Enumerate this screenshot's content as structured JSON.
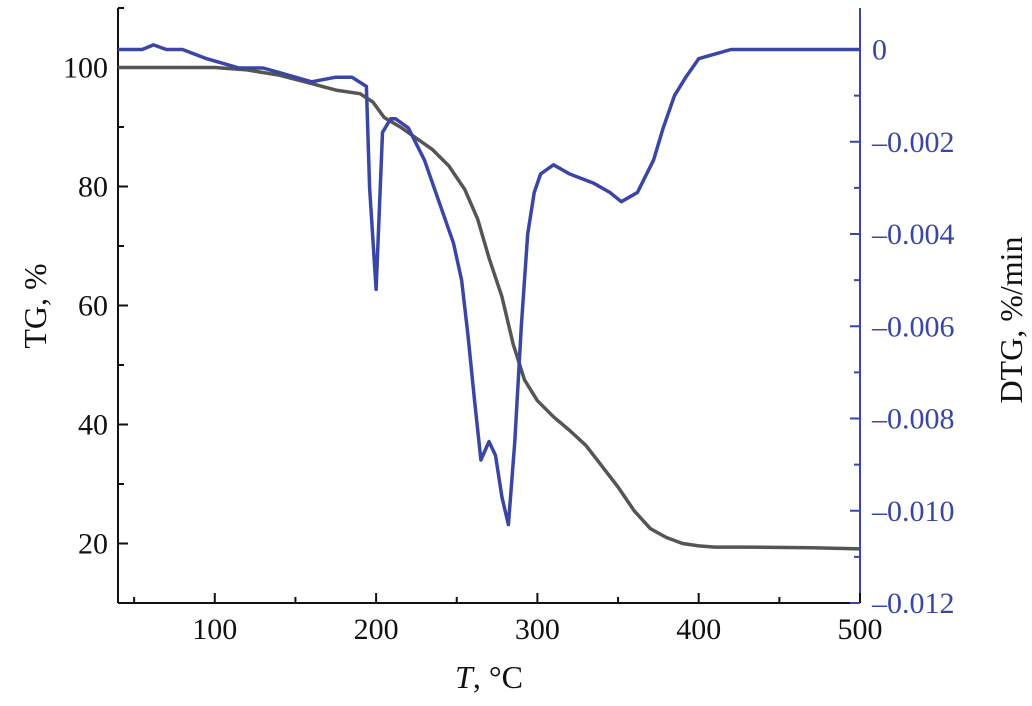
{
  "colors": {
    "tg": "#555555",
    "dtg": "#3a46a6",
    "axis": "#111111",
    "right_axis": "#3a46a6"
  },
  "chart_data": {
    "type": "line",
    "x_axis": {
      "label_italic": "T",
      "label_rest": ", °C",
      "range": [
        40,
        500
      ],
      "tick_labels": [
        "100",
        "200",
        "300",
        "400",
        "500"
      ],
      "ticks": [
        100,
        200,
        300,
        400,
        500
      ]
    },
    "y_left": {
      "label": "TG, %",
      "range": [
        10,
        110
      ],
      "tick_labels": [
        "20",
        "40",
        "60",
        "80",
        "100"
      ],
      "ticks": [
        20,
        40,
        60,
        80,
        100
      ]
    },
    "y_right": {
      "label": "DTG, %/min",
      "range": [
        -0.012,
        0.0009
      ],
      "tick_labels": [
        "0",
        "–0.002",
        "–0.004",
        "–0.006",
        "–0.008",
        "–0.010",
        "–0.012"
      ],
      "ticks": [
        0,
        -0.002,
        -0.004,
        -0.006,
        -0.008,
        -0.01,
        -0.012
      ]
    },
    "grid": false,
    "legend": "none",
    "series": [
      {
        "axis": "left",
        "points": [
          [
            40,
            100
          ],
          [
            100,
            100
          ],
          [
            120,
            99.6
          ],
          [
            140,
            98.7
          ],
          [
            160,
            97.3
          ],
          [
            175,
            96.2
          ],
          [
            190,
            95.6
          ],
          [
            198,
            94.2
          ],
          [
            205,
            91.6
          ],
          [
            215,
            90
          ],
          [
            225,
            88.1
          ],
          [
            235,
            86.2
          ],
          [
            245,
            83.5
          ],
          [
            255,
            79.5
          ],
          [
            263,
            74.5
          ],
          [
            270,
            68
          ],
          [
            278,
            61.5
          ],
          [
            285,
            53.5
          ],
          [
            292,
            47.5
          ],
          [
            300,
            44
          ],
          [
            310,
            41.3
          ],
          [
            320,
            39
          ],
          [
            330,
            36.5
          ],
          [
            340,
            33
          ],
          [
            350,
            29.5
          ],
          [
            360,
            25.5
          ],
          [
            370,
            22.5
          ],
          [
            380,
            21
          ],
          [
            390,
            20
          ],
          [
            400,
            19.6
          ],
          [
            410,
            19.4
          ],
          [
            430,
            19.4
          ],
          [
            470,
            19.3
          ],
          [
            500,
            19.1
          ]
        ]
      },
      {
        "axis": "right",
        "points": [
          [
            40,
            0
          ],
          [
            55,
            0
          ],
          [
            62,
            0.0001
          ],
          [
            70,
            0
          ],
          [
            80,
            0
          ],
          [
            95,
            -0.0002
          ],
          [
            105,
            -0.0003
          ],
          [
            115,
            -0.0004
          ],
          [
            130,
            -0.0004
          ],
          [
            140,
            -0.0005
          ],
          [
            150,
            -0.0006
          ],
          [
            160,
            -0.0007
          ],
          [
            175,
            -0.0006
          ],
          [
            185,
            -0.0006
          ],
          [
            194,
            -0.0008
          ],
          [
            196,
            -0.003
          ],
          [
            200,
            -0.0052
          ],
          [
            204,
            -0.0018
          ],
          [
            209,
            -0.0015
          ],
          [
            212,
            -0.0015
          ],
          [
            220,
            -0.0017
          ],
          [
            230,
            -0.0024
          ],
          [
            240,
            -0.0034
          ],
          [
            248,
            -0.0042
          ],
          [
            253,
            -0.005
          ],
          [
            257,
            -0.0062
          ],
          [
            261,
            -0.0076
          ],
          [
            265,
            -0.0089
          ],
          [
            270,
            -0.0085
          ],
          [
            274,
            -0.0088
          ],
          [
            278,
            -0.0097
          ],
          [
            282,
            -0.0103
          ],
          [
            286,
            -0.0085
          ],
          [
            290,
            -0.006
          ],
          [
            294,
            -0.004
          ],
          [
            298,
            -0.0031
          ],
          [
            302,
            -0.0027
          ],
          [
            310,
            -0.0025
          ],
          [
            320,
            -0.0027
          ],
          [
            335,
            -0.0029
          ],
          [
            345,
            -0.0031
          ],
          [
            352,
            -0.0033
          ],
          [
            362,
            -0.0031
          ],
          [
            372,
            -0.0024
          ],
          [
            378,
            -0.0017
          ],
          [
            385,
            -0.001
          ],
          [
            392,
            -0.0006
          ],
          [
            400,
            -0.0002
          ],
          [
            410,
            -0.0001
          ],
          [
            420,
            0
          ],
          [
            440,
            0
          ],
          [
            460,
            0
          ],
          [
            480,
            0
          ],
          [
            500,
            0
          ]
        ]
      }
    ]
  }
}
